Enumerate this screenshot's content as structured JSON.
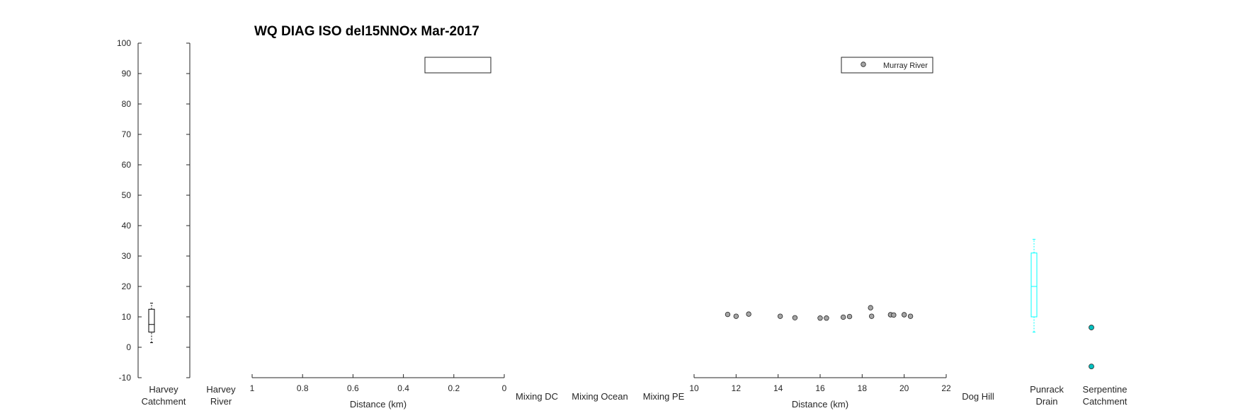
{
  "chart_data": {
    "type": "scatter",
    "title": "WQ DIAG ISO del15NNOx Mar-2017",
    "ylim": [
      -10,
      100
    ],
    "yticks": [
      "-10",
      "0",
      "10",
      "20",
      "30",
      "40",
      "50",
      "60",
      "70",
      "80",
      "90",
      "100"
    ],
    "categories": [
      [
        "Harvey",
        "Catchment"
      ],
      [
        "Harvey",
        "River"
      ],
      [
        "Mixing DC"
      ],
      [
        "Mixing Ocean"
      ],
      [
        "Mixing PE"
      ],
      [
        "Dog Hill"
      ],
      [
        "Punrack",
        "Drain"
      ],
      [
        "Serpentine",
        "Catchment"
      ]
    ],
    "panel_a": {
      "xlabel": "Distance (km)",
      "xlim": [
        1,
        0
      ],
      "xticks": [
        "1",
        "0.8",
        "0.6",
        "0.4",
        "0.2",
        "0"
      ]
    },
    "panel_b": {
      "xlabel": "Distance (km)",
      "xlim": [
        10,
        22
      ],
      "xticks": [
        "10",
        "12",
        "14",
        "16",
        "18",
        "20",
        "22"
      ],
      "legend": "Murray River",
      "series": [
        {
          "name": "Murray River",
          "x": [
            11.6,
            12.0,
            12.6,
            14.1,
            14.8,
            16.0,
            16.3,
            17.1,
            17.4,
            18.4,
            18.45,
            19.35,
            19.5,
            20.0,
            20.3
          ],
          "y": [
            10.8,
            10.2,
            10.9,
            10.2,
            9.7,
            9.6,
            9.6,
            9.9,
            10.1,
            13.0,
            10.2,
            10.7,
            10.6,
            10.7,
            10.2
          ]
        }
      ]
    },
    "boxplots": [
      {
        "category": "Harvey Catchment",
        "color": "#000000",
        "whisker_low": 1.5,
        "q1": 5,
        "median": 7.5,
        "q3": 12.5,
        "whisker_high": 14.5
      },
      {
        "category": "Punrack Drain",
        "color": "#00ffff",
        "whisker_low": 5,
        "q1": 10,
        "median": 20,
        "q3": 31,
        "whisker_high": 35.5
      }
    ],
    "points": [
      {
        "category": "Serpentine Catchment",
        "color": "#00c0c0",
        "values": [
          6.5,
          -6.3
        ]
      }
    ]
  }
}
